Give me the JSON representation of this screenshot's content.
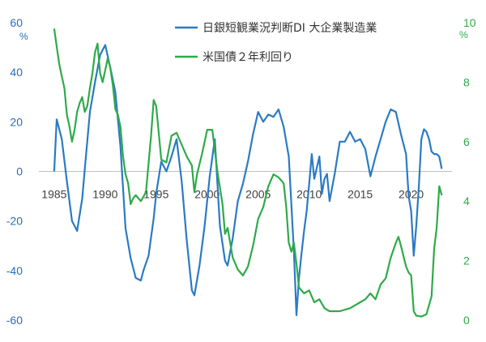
{
  "chart_data": {
    "type": "line",
    "title": "",
    "xlabel": "",
    "x_ticks": [
      "1985",
      "1990",
      "1995",
      "2000",
      "2005",
      "2010",
      "2015",
      "2020"
    ],
    "y_left": {
      "unit": "%",
      "ylim": [
        -60,
        60
      ],
      "ticks": [
        "60",
        "40",
        "20",
        "0",
        "-20",
        "-40",
        "-60"
      ]
    },
    "y_right": {
      "unit": "%",
      "ylim": [
        0,
        10
      ],
      "ticks": [
        "10",
        "8",
        "6",
        "4",
        "2",
        "0"
      ]
    },
    "grid": false,
    "legend_position": "top-center",
    "series": [
      {
        "name": "日銀短観業況判断DI 大企業製造業",
        "axis": "left",
        "color": "#2a7bc4",
        "x": [
          1985.0,
          1985.25,
          1985.75,
          1986.25,
          1986.75,
          1987.25,
          1987.75,
          1988.0,
          1988.5,
          1989.0,
          1989.5,
          1990.0,
          1990.5,
          1991.0,
          1991.5,
          1992.0,
          1992.5,
          1993.0,
          1993.5,
          1993.75,
          1994.25,
          1994.75,
          1995.0,
          1995.5,
          1996.0,
          1996.5,
          1997.0,
          1997.5,
          1998.0,
          1998.5,
          1998.75,
          1999.25,
          1999.75,
          2000.25,
          2000.75,
          2001.25,
          2001.75,
          2002.0,
          2002.5,
          2003.0,
          2003.5,
          2004.0,
          2004.5,
          2005.0,
          2005.5,
          2006.0,
          2006.5,
          2007.0,
          2007.5,
          2008.0,
          2008.5,
          2008.75,
          2009.0,
          2009.25,
          2009.5,
          2009.75,
          2010.0,
          2010.25,
          2010.5,
          2011.0,
          2011.25,
          2011.5,
          2011.75,
          2012.0,
          2012.5,
          2013.0,
          2013.5,
          2014.0,
          2014.5,
          2015.0,
          2015.5,
          2016.0,
          2016.5,
          2017.0,
          2017.5,
          2018.0,
          2018.5,
          2019.0,
          2019.5,
          2019.75,
          2020.0,
          2020.25,
          2020.5,
          2020.75,
          2021.0,
          2021.25,
          2021.5,
          2021.75,
          2022.0,
          2022.25,
          2022.5,
          2022.75,
          2023.0
        ],
        "y": [
          0,
          21,
          13,
          -4,
          -20,
          -24,
          -11,
          1,
          24,
          36,
          47,
          51,
          42,
          32,
          10,
          -23,
          -35,
          -43,
          -44,
          -40,
          -34,
          -19,
          -9,
          4,
          0,
          6,
          13,
          -4,
          -28,
          -48,
          -50,
          -38,
          -22,
          -2,
          13,
          -22,
          -36,
          -38,
          -27,
          -12,
          -5,
          4,
          15,
          24,
          20,
          23,
          22,
          25,
          18,
          6,
          -32,
          -58,
          -43,
          -33,
          -24,
          -16,
          -5,
          7,
          -3,
          6,
          -9,
          -3,
          -1,
          -12,
          -1,
          12,
          12,
          16,
          12,
          13,
          9,
          -2,
          6,
          13,
          20,
          25,
          24,
          15,
          7,
          -10,
          -16,
          -34,
          -22,
          -6,
          13,
          17,
          16,
          13,
          8,
          7,
          7,
          6,
          1
        ]
      },
      {
        "name": "米国債２年利回り",
        "axis": "right",
        "color": "#2faa4a",
        "x": [
          1985.0,
          1985.25,
          1985.5,
          1985.75,
          1986.0,
          1986.25,
          1986.5,
          1986.75,
          1987.0,
          1987.25,
          1987.5,
          1987.75,
          1988.0,
          1988.25,
          1988.5,
          1988.75,
          1989.0,
          1989.25,
          1989.5,
          1989.75,
          1990.0,
          1990.25,
          1990.5,
          1990.75,
          1991.0,
          1991.25,
          1991.5,
          1991.75,
          1992.0,
          1992.25,
          1992.5,
          1992.75,
          1993.0,
          1993.5,
          1994.0,
          1994.5,
          1994.75,
          1995.0,
          1995.5,
          1996.0,
          1996.5,
          1997.0,
          1997.5,
          1998.0,
          1998.5,
          1998.75,
          1999.0,
          1999.5,
          2000.0,
          2000.5,
          2001.0,
          2001.5,
          2001.75,
          2002.0,
          2002.5,
          2003.0,
          2003.5,
          2004.0,
          2004.5,
          2005.0,
          2005.5,
          2006.0,
          2006.5,
          2007.0,
          2007.5,
          2007.75,
          2008.0,
          2008.25,
          2008.5,
          2008.75,
          2009.0,
          2009.5,
          2010.0,
          2010.5,
          2011.0,
          2011.5,
          2012.0,
          2013.0,
          2014.0,
          2015.0,
          2015.5,
          2016.0,
          2016.5,
          2017.0,
          2017.5,
          2018.0,
          2018.5,
          2018.75,
          2019.0,
          2019.5,
          2019.75,
          2020.0,
          2020.25,
          2020.5,
          2021.0,
          2021.5,
          2022.0,
          2022.25,
          2022.5,
          2022.75,
          2023.0
        ],
        "y": [
          9.8,
          9.2,
          8.6,
          8.2,
          7.8,
          6.9,
          6.5,
          6.0,
          6.4,
          7.0,
          7.3,
          7.5,
          7.0,
          7.2,
          7.8,
          8.3,
          9.0,
          9.3,
          8.3,
          8.0,
          8.4,
          8.8,
          8.5,
          7.9,
          7.1,
          6.9,
          6.5,
          5.5,
          4.9,
          4.6,
          3.9,
          4.1,
          4.2,
          4.0,
          4.3,
          6.2,
          7.4,
          7.2,
          5.4,
          5.3,
          6.2,
          6.3,
          5.9,
          5.5,
          5.2,
          4.3,
          4.9,
          5.6,
          6.4,
          6.4,
          5.0,
          3.9,
          2.9,
          3.1,
          2.1,
          1.7,
          1.5,
          1.8,
          2.5,
          3.4,
          3.8,
          4.5,
          4.9,
          4.8,
          4.6,
          3.8,
          2.6,
          2.3,
          2.6,
          1.9,
          1.1,
          0.9,
          1.0,
          0.6,
          0.7,
          0.4,
          0.3,
          0.3,
          0.4,
          0.6,
          0.7,
          0.9,
          0.7,
          1.2,
          1.4,
          2.1,
          2.6,
          2.8,
          2.5,
          1.8,
          1.6,
          1.5,
          0.3,
          0.15,
          0.12,
          0.2,
          0.8,
          2.4,
          3.1,
          4.5,
          4.2
        ]
      }
    ]
  }
}
